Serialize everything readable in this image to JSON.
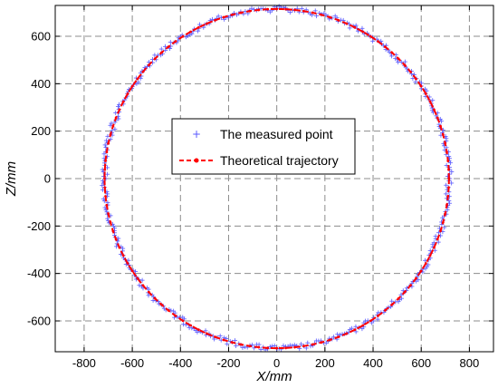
{
  "chart_data": {
    "type": "scatter",
    "title": "",
    "xlabel": "X/mm",
    "ylabel": "Z/mm",
    "xlim": [
      -920,
      900
    ],
    "ylim": [
      -730,
      730
    ],
    "x_ticks": [
      -800,
      -600,
      -400,
      -200,
      0,
      200,
      400,
      600,
      800
    ],
    "y_ticks": [
      -600,
      -400,
      -200,
      0,
      200,
      400,
      600
    ],
    "x_tick_labels": [
      "-800",
      "-600",
      "-400",
      "-200",
      "0",
      "200",
      "400",
      "600",
      "800"
    ],
    "y_tick_labels": [
      "-600",
      "-400",
      "-200",
      "0",
      "200",
      "400",
      "600"
    ],
    "grid": true,
    "legend_position": "center",
    "series": [
      {
        "name": "The measured point",
        "type": "scatter",
        "marker": "+",
        "color": "#5a5aff",
        "shape": "circle",
        "center": [
          0,
          0
        ],
        "radius": 715,
        "noise": 12,
        "count": 480
      },
      {
        "name": "Theoretical trajectory",
        "type": "line",
        "style": "dashed",
        "marker": "dot",
        "color": "#ff0000",
        "shape": "circle",
        "center": [
          0,
          0
        ],
        "radius": 715
      }
    ]
  }
}
